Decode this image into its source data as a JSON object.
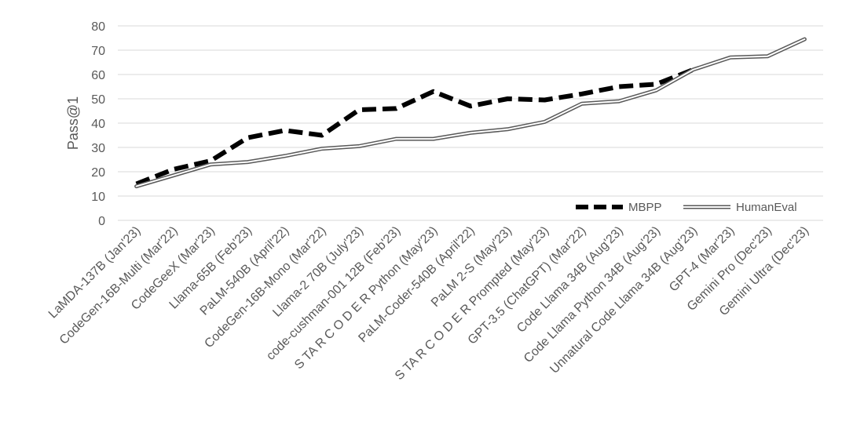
{
  "chart_data": {
    "type": "line",
    "title": "",
    "xlabel": "",
    "ylabel": "Pass@1",
    "ylim": [
      0,
      80
    ],
    "yticks": [
      0,
      10,
      20,
      30,
      40,
      50,
      60,
      70,
      80
    ],
    "grid": true,
    "legend_position": "bottom-right",
    "categories": [
      "LaMDA-137B (Jan'23)",
      "CodeGen-16B-Multi (Mar'22)",
      "CodeGeeX (Mar'23)",
      "Llama-65B (Feb'23)",
      "PaLM-540B (April'22)",
      "CodeGen-16B-Mono (Mar'22)",
      "Llama-2 70B (July'23)",
      "code-cushman-001 12B (Feb'23)",
      "S TA R C O D E R Python (May'23)",
      "PaLM-Coder-540B (April'22)",
      "PaLM 2-S (May'23)",
      "S TA R C O D E R Prompted (May'23)",
      "GPT-3.5 (ChatGPT) (Mar'22)",
      "Code Llama 34B (Aug'23)",
      "Code Llama Python 34B (Aug'23)",
      "Unnatural Code Llama 34B (Aug'23)",
      "GPT-4 (Mar'23)",
      "Gemini Pro (Dec'23)",
      "Gemini Ultra (Dec'23)"
    ],
    "series": [
      {
        "name": "MBPP",
        "style": "dashed",
        "color": "#000000",
        "values": [
          15,
          21,
          24.5,
          34,
          37,
          35,
          45.5,
          46,
          53,
          47,
          50,
          49.5,
          52,
          55,
          56,
          62,
          null,
          null,
          null
        ]
      },
      {
        "name": "HumanEval",
        "style": "double",
        "color": "#595959",
        "values": [
          14,
          18.5,
          23,
          24,
          26.5,
          29.5,
          30.5,
          33.5,
          33.5,
          36,
          37.5,
          40.5,
          48,
          49,
          53.5,
          62,
          67,
          67.5,
          74.5
        ]
      }
    ]
  }
}
